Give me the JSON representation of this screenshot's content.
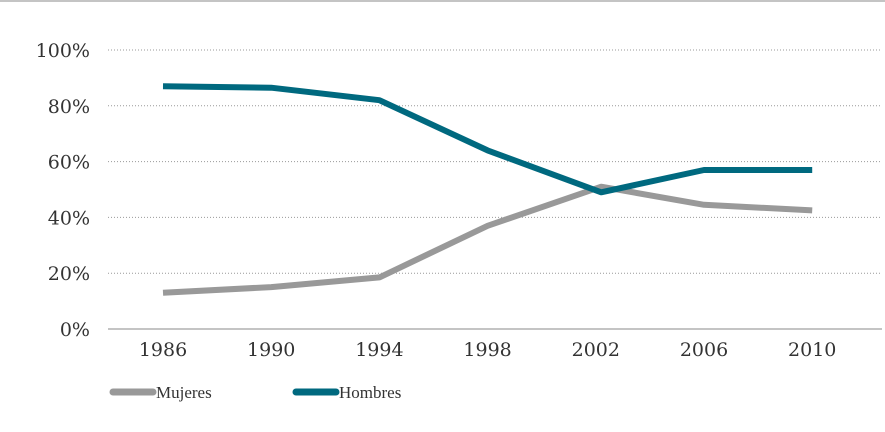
{
  "chart_data": {
    "type": "line",
    "title": "",
    "xlabel": "",
    "ylabel": "",
    "x": [
      "1986",
      "1990",
      "1994",
      "1998",
      "2002",
      "2006",
      "2010"
    ],
    "ylim": [
      0,
      100
    ],
    "yticks": [
      0,
      20,
      40,
      60,
      80,
      100
    ],
    "ytick_labels": [
      "0%",
      "20%",
      "40%",
      "60%",
      "80%",
      "100%"
    ],
    "grid": "horizontal dotted",
    "legend_position": "bottom-left",
    "series": [
      {
        "name": "Mujeres",
        "color": "#999999",
        "points": [
          {
            "x": 0,
            "y": 13
          },
          {
            "x": 1,
            "y": 15
          },
          {
            "x": 2,
            "y": 18.5
          },
          {
            "x": 3,
            "y": 37
          },
          {
            "x": 4.05,
            "y": 51
          },
          {
            "x": 5,
            "y": 44.5
          },
          {
            "x": 6,
            "y": 42.5
          }
        ]
      },
      {
        "name": "Hombres",
        "color": "#00697f",
        "points": [
          {
            "x": 0,
            "y": 87
          },
          {
            "x": 1,
            "y": 86.5
          },
          {
            "x": 2,
            "y": 82
          },
          {
            "x": 3,
            "y": 64
          },
          {
            "x": 4.05,
            "y": 49
          },
          {
            "x": 5,
            "y": 57
          },
          {
            "x": 6,
            "y": 57
          }
        ]
      }
    ]
  }
}
